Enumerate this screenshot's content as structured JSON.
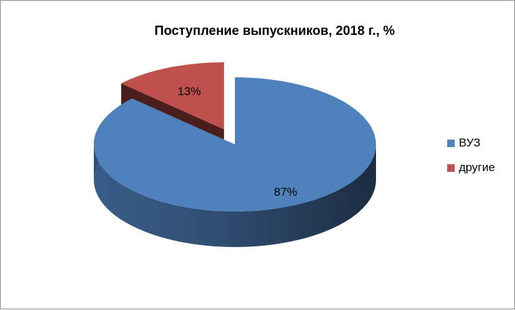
{
  "chart_data": {
    "type": "pie",
    "title": "Поступление выпускников, 2018 г., %",
    "categories": [
      "ВУЗ",
      "другие"
    ],
    "values": [
      87,
      13
    ],
    "data_labels": [
      "87%",
      "13%"
    ],
    "colors": [
      "#4f81bd",
      "#c0504d"
    ],
    "exploded": "другие",
    "style": "3d",
    "legend_position": "right"
  }
}
